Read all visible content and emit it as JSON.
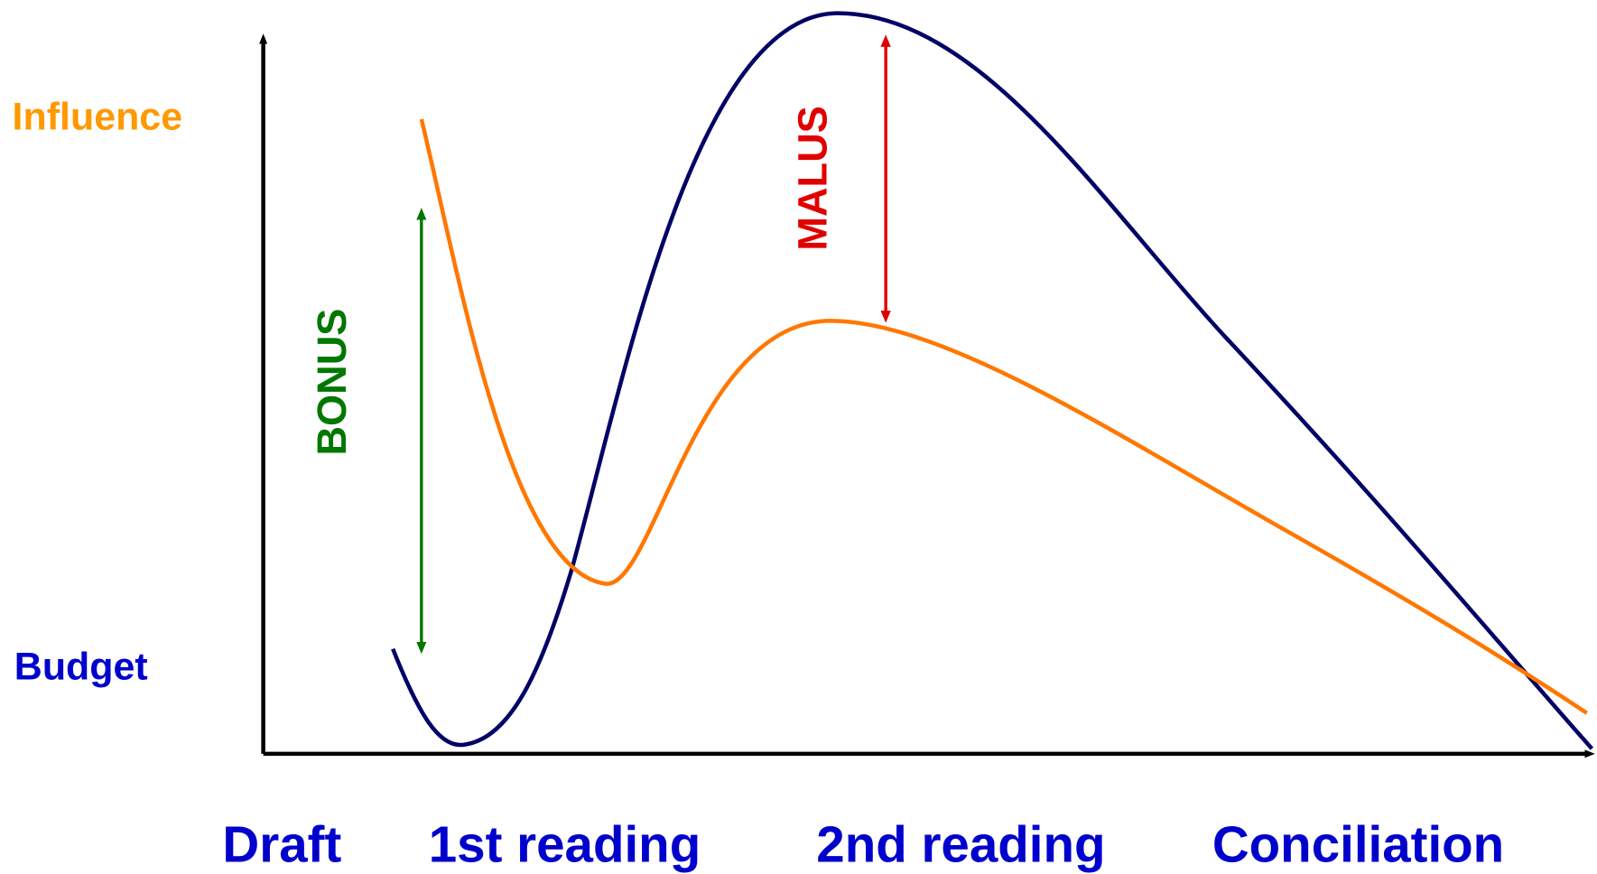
{
  "axis_labels": {
    "top": "Influence",
    "bottom": "Budget"
  },
  "annotations": {
    "bonus": "BONUS",
    "malus": "MALUS"
  },
  "stages": [
    "Draft",
    "1st reading",
    "2nd reading",
    "Conciliation"
  ]
}
